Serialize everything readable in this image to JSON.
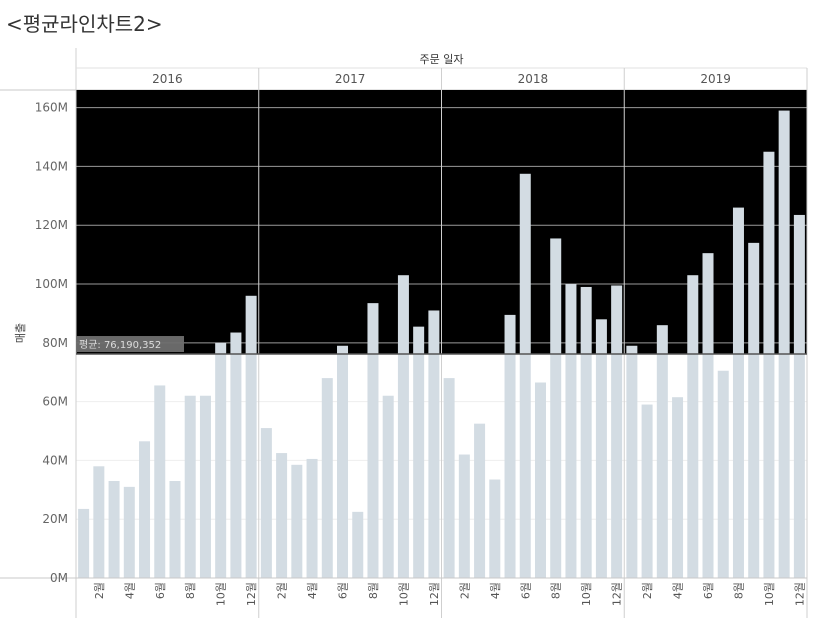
{
  "title": "<평균라인차트2>",
  "chart_data": {
    "type": "bar",
    "column_header": "주문 일자",
    "ylabel": "매출",
    "ylim": [
      0,
      166000000
    ],
    "y_ticks": [
      0,
      20000000,
      40000000,
      60000000,
      80000000,
      100000000,
      120000000,
      140000000,
      160000000
    ],
    "y_tick_labels": [
      "0M",
      "20M",
      "40M",
      "60M",
      "80M",
      "100M",
      "120M",
      "140M",
      "160M"
    ],
    "x_tick_labels": [
      "2월",
      "4월",
      "6월",
      "8월",
      "10월",
      "12월"
    ],
    "average_line": {
      "value": 76190352,
      "label": "평균: 76,190,352"
    },
    "band_above_average_color": "#000000",
    "bar_color": "#d3dce3",
    "panels": [
      {
        "year": "2016",
        "months": [
          1,
          2,
          3,
          4,
          5,
          6,
          7,
          8,
          9,
          10,
          11,
          12
        ],
        "values": [
          23500000,
          38000000,
          33000000,
          31000000,
          46500000,
          65500000,
          33000000,
          62000000,
          62000000,
          80000000,
          83500000,
          96000000
        ]
      },
      {
        "year": "2017",
        "months": [
          1,
          2,
          3,
          4,
          5,
          6,
          7,
          8,
          9,
          10,
          11,
          12
        ],
        "values": [
          51000000,
          42500000,
          38500000,
          40500000,
          68000000,
          79000000,
          22500000,
          93500000,
          62000000,
          103000000,
          85500000,
          91000000
        ]
      },
      {
        "year": "2018",
        "months": [
          1,
          2,
          3,
          4,
          5,
          6,
          7,
          8,
          9,
          10,
          11,
          12
        ],
        "values": [
          68000000,
          42000000,
          52500000,
          33500000,
          89500000,
          137500000,
          66500000,
          115500000,
          100000000,
          99000000,
          88000000,
          99500000
        ]
      },
      {
        "year": "2019",
        "months": [
          1,
          2,
          3,
          4,
          5,
          6,
          7,
          8,
          9,
          10,
          11,
          12
        ],
        "values": [
          79000000,
          59000000,
          86000000,
          61500000,
          103000000,
          110500000,
          70500000,
          126000000,
          114000000,
          145000000,
          159000000,
          123500000
        ]
      }
    ]
  }
}
